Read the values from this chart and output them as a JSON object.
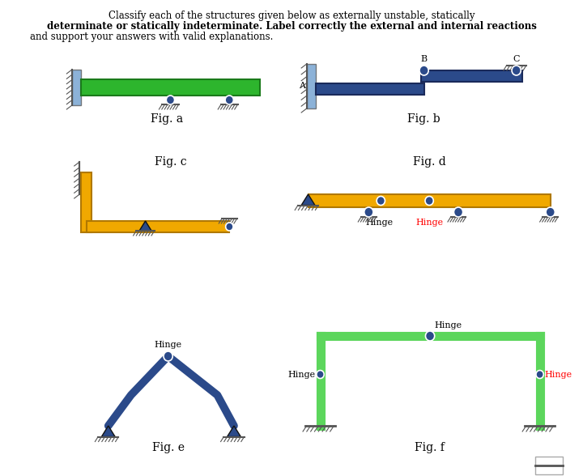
{
  "bg_color": "#ffffff",
  "green_color": "#2db52d",
  "dark_blue": "#2b4a8a",
  "gold_color": "#f0a800",
  "lime_green": "#5cd65c",
  "support_color": "#6699cc",
  "pin_color": "#2b4a8a",
  "title_line1": "Classify each of the structures given below as externally unstable, statically",
  "title_line2": "determinate or statically indeterminate. Label correctly the external and internal reactions",
  "title_line3": "and support your answers with valid explanations."
}
